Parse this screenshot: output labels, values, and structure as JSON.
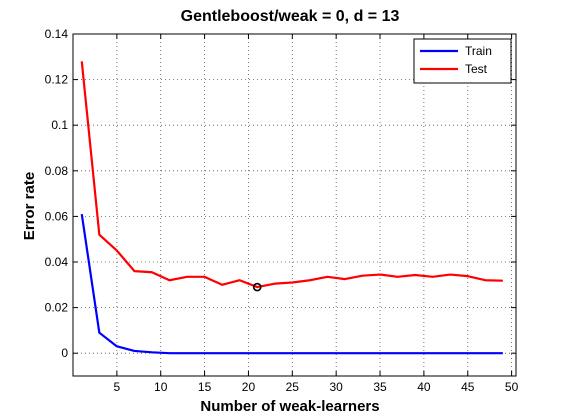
{
  "chart_data": {
    "type": "line",
    "title": "Gentleboost/weak = 0, d = 13",
    "xlabel": "Number of weak-learners",
    "ylabel": "Error rate",
    "xlim": [
      0,
      50.5
    ],
    "ylim": [
      -0.01,
      0.14
    ],
    "xticks": [
      5,
      10,
      15,
      20,
      25,
      30,
      35,
      40,
      45,
      50
    ],
    "yticks": [
      0,
      0.02,
      0.04,
      0.06,
      0.08,
      0.1,
      0.12,
      0.14
    ],
    "ytick_labels": [
      "0",
      "0.02",
      "0.04",
      "0.06",
      "0.08",
      "0.1",
      "0.12",
      "0.14"
    ],
    "grid": true,
    "legend_position": "top-right",
    "series": [
      {
        "name": "Train",
        "color": "#0000ff",
        "x": [
          1,
          3,
          5,
          7,
          9,
          11,
          13,
          15,
          17,
          19,
          21,
          23,
          25,
          27,
          29,
          31,
          33,
          35,
          37,
          39,
          41,
          43,
          45,
          47,
          49
        ],
        "y": [
          0.061,
          0.009,
          0.003,
          0.001,
          0.0004,
          0,
          0,
          0,
          0,
          0,
          0,
          0,
          0,
          0,
          0,
          0,
          0,
          0,
          0,
          0,
          0,
          0,
          0,
          0,
          0
        ]
      },
      {
        "name": "Test",
        "color": "#ff0000",
        "x": [
          1,
          3,
          5,
          7,
          9,
          11,
          13,
          15,
          17,
          19,
          21,
          23,
          25,
          27,
          29,
          31,
          33,
          35,
          37,
          39,
          41,
          43,
          45,
          47,
          49
        ],
        "y": [
          0.128,
          0.052,
          0.045,
          0.036,
          0.0355,
          0.032,
          0.0335,
          0.0335,
          0.03,
          0.032,
          0.029,
          0.0305,
          0.031,
          0.032,
          0.0335,
          0.0325,
          0.034,
          0.0345,
          0.0335,
          0.0343,
          0.0335,
          0.0345,
          0.0338,
          0.032,
          0.0318
        ]
      }
    ],
    "marker": {
      "x": 21,
      "y": 0.029,
      "color": "#000000"
    }
  }
}
